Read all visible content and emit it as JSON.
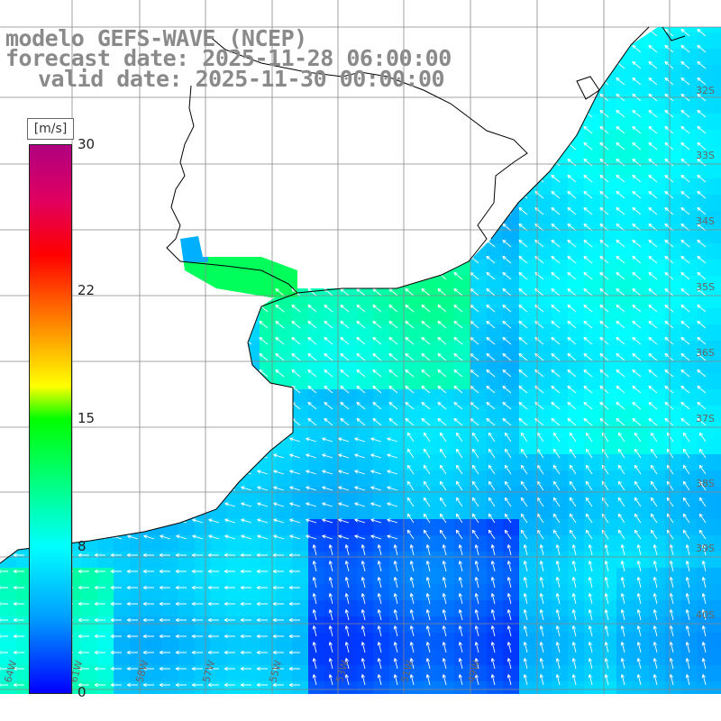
{
  "title": {
    "line1": "modelo GEFS-WAVE (NCEP)",
    "line2": "forecast date: 2025-11-28 06:00:00",
    "line3": "valid date: 2025-11-30 00:00:00"
  },
  "colorbar": {
    "units": "[m/s]",
    "ticks": [
      {
        "label": "30",
        "value": 30
      },
      {
        "label": "22",
        "value": 22
      },
      {
        "label": "15",
        "value": 15
      },
      {
        "label": "8",
        "value": 8
      },
      {
        "label": "0",
        "value": 0
      }
    ],
    "min": 0,
    "max": 30
  },
  "axes": {
    "longitude_labels": [
      "64W",
      "61W",
      "58W",
      "57W",
      "55W",
      "53W",
      "51W",
      "49W"
    ],
    "latitude_labels": [
      "32S",
      "33S",
      "34S",
      "35S",
      "36S",
      "37S",
      "38S",
      "39S",
      "40S"
    ]
  },
  "colors": {
    "land": "#ffffff",
    "coastline": "#000000",
    "grid": "#888888",
    "arrows": "#ffffff",
    "title": "#8a8a8a"
  }
}
